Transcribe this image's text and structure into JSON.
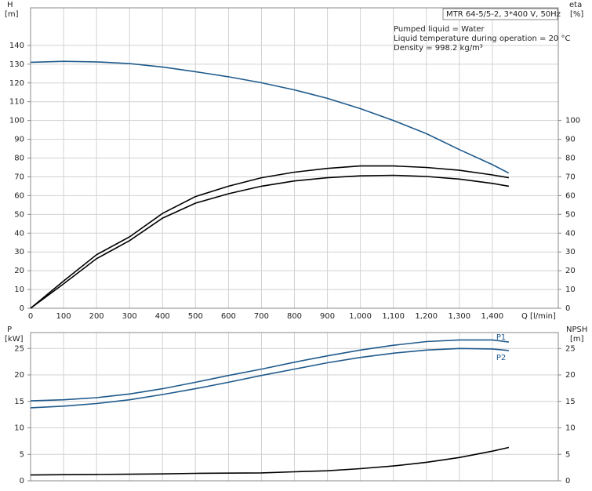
{
  "chart_data": [
    {
      "type": "line",
      "ylabel": "H",
      "yunit": "[m]",
      "y2label": "eta",
      "y2unit": "[%]",
      "xlabel": "Q [l/min]",
      "info": [
        "MTR 64-5/5-2, 3*400 V, 50Hz",
        "Pumped liquid = Water",
        "Liquid temperature during operation = 20 °C",
        "Density = 998.2 kg/m³"
      ],
      "x": [
        0,
        100,
        200,
        300,
        400,
        500,
        600,
        700,
        800,
        900,
        1000,
        1100,
        1200,
        1300,
        1400,
        1450
      ],
      "xlim": [
        0,
        1600
      ],
      "xticks": [
        0,
        100,
        200,
        300,
        400,
        500,
        600,
        700,
        800,
        900,
        {
          "value": 1000,
          "label": "1,000"
        },
        {
          "value": 1100,
          "label": "1,100"
        },
        {
          "value": 1200,
          "label": "1,200"
        },
        {
          "value": 1300,
          "label": "1,300"
        },
        {
          "value": 1400,
          "label": "1,400"
        }
      ],
      "ylim": [
        0,
        160
      ],
      "yticks": [
        0,
        10,
        20,
        30,
        40,
        50,
        60,
        70,
        80,
        90,
        100,
        110,
        120,
        130,
        140
      ],
      "y2lim": [
        0,
        160
      ],
      "y2ticks": [
        0,
        10,
        20,
        30,
        40,
        50,
        60,
        70,
        80,
        90,
        100
      ],
      "grid": true,
      "series": [
        {
          "color": "#1f5a8c",
          "values": [
            131,
            131.5,
            131.2,
            130.3,
            128.5,
            126,
            123.3,
            120.1,
            116.3,
            111.8,
            106.3,
            100,
            93,
            84.5,
            76.5,
            72
          ]
        },
        {
          "color": "#000000",
          "axis": "y2",
          "values": [
            0,
            14.5,
            28.5,
            38,
            50.5,
            59.5,
            65,
            69.5,
            72.5,
            74.5,
            75.8,
            75.8,
            75,
            73.5,
            71,
            69.5
          ]
        },
        {
          "color": "#000000",
          "axis": "y2",
          "values": [
            0,
            13,
            26.4,
            36,
            48,
            56,
            61,
            65,
            67.8,
            69.5,
            70.5,
            70.8,
            70.2,
            68.8,
            66.5,
            65
          ]
        }
      ]
    },
    {
      "type": "line",
      "ylabel": "P",
      "yunit": "[kW]",
      "y2label": "NPSH",
      "y2unit": "[m]",
      "x": [
        0,
        100,
        200,
        300,
        400,
        500,
        600,
        700,
        800,
        900,
        1000,
        1100,
        1200,
        1300,
        1400,
        1450
      ],
      "xlim": [
        0,
        1600
      ],
      "ylim": [
        0,
        28
      ],
      "yticks": [
        0,
        5,
        10,
        15,
        20,
        25
      ],
      "y2lim": [
        0,
        28
      ],
      "y2ticks": [
        0,
        5,
        10,
        15,
        20,
        25
      ],
      "grid": true,
      "series": [
        {
          "name": "P1",
          "color": "#1f5a8c",
          "values": [
            15.1,
            15.3,
            15.7,
            16.4,
            17.4,
            18.6,
            19.9,
            21.1,
            22.4,
            23.6,
            24.7,
            25.6,
            26.3,
            26.6,
            26.6,
            26.2
          ]
        },
        {
          "name": "P2",
          "color": "#1f5a8c",
          "values": [
            13.8,
            14.1,
            14.6,
            15.3,
            16.3,
            17.4,
            18.6,
            19.9,
            21.1,
            22.3,
            23.3,
            24.1,
            24.7,
            25,
            24.9,
            24.6
          ]
        },
        {
          "color": "#000000",
          "axis": "y2",
          "values": [
            1.1,
            1.15,
            1.2,
            1.25,
            1.3,
            1.4,
            1.45,
            1.5,
            1.7,
            1.9,
            2.3,
            2.8,
            3.5,
            4.4,
            5.6,
            6.3
          ]
        }
      ]
    }
  ]
}
